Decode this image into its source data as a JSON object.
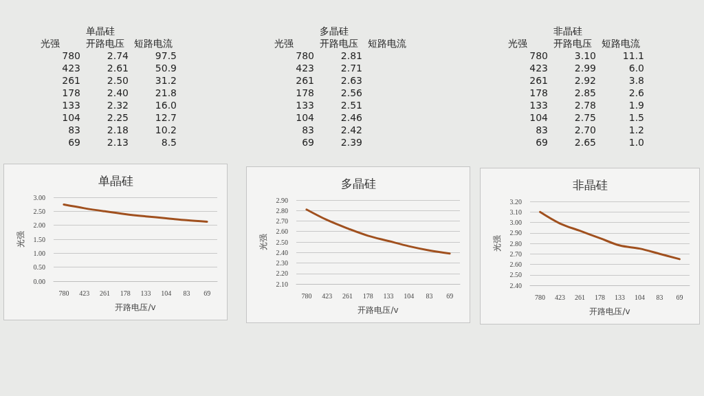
{
  "chart_data": [
    {
      "type": "other",
      "title": "单晶硅",
      "xlabel": "光强",
      "categories": [
        "780",
        "423",
        "261",
        "178",
        "133",
        "104",
        "83",
        "69"
      ],
      "series": [
        {
          "name": "开路电压",
          "values": [
            2.74,
            2.61,
            2.5,
            2.4,
            2.32,
            2.25,
            2.18,
            2.13
          ],
          "value_labels": [
            "2.74",
            "2.61",
            "2.50",
            "2.40",
            "2.32",
            "2.25",
            "2.18",
            "2.13"
          ]
        },
        {
          "name": "短路电流",
          "values": [
            97.5,
            50.9,
            31.2,
            21.8,
            16.0,
            12.7,
            10.2,
            8.5
          ],
          "value_labels": [
            "97.5",
            "50.9",
            "31.2",
            "21.8",
            "16.0",
            "12.7",
            "10.2",
            "8.5"
          ]
        }
      ]
    },
    {
      "type": "other",
      "title": "多晶硅",
      "xlabel": "光强",
      "categories": [
        "780",
        "423",
        "261",
        "178",
        "133",
        "104",
        "83",
        "69"
      ],
      "series": [
        {
          "name": "开路电压",
          "values": [
            2.81,
            2.71,
            2.63,
            2.56,
            2.51,
            2.46,
            2.42,
            2.39
          ],
          "value_labels": [
            "2.81",
            "2.71",
            "2.63",
            "2.56",
            "2.51",
            "2.46",
            "2.42",
            "2.39"
          ]
        },
        {
          "name": "短路电流",
          "values": [
            null,
            null,
            null,
            null,
            null,
            null,
            null,
            null
          ]
        }
      ]
    },
    {
      "type": "other",
      "title": "非晶硅",
      "xlabel": "光强",
      "categories": [
        "780",
        "423",
        "261",
        "178",
        "133",
        "104",
        "83",
        "69"
      ],
      "series": [
        {
          "name": "开路电压",
          "values": [
            3.1,
            2.99,
            2.92,
            2.85,
            2.78,
            2.75,
            2.7,
            2.65
          ],
          "value_labels": [
            "3.10",
            "2.99",
            "2.92",
            "2.85",
            "2.78",
            "2.75",
            "2.70",
            "2.65"
          ]
        },
        {
          "name": "短路电流",
          "values": [
            11.1,
            6.0,
            3.8,
            2.6,
            1.9,
            1.5,
            1.2,
            1.0
          ],
          "value_labels": [
            "11.1",
            "6.0",
            "3.8",
            "2.6",
            "1.9",
            "1.5",
            "1.2",
            "1.0"
          ]
        }
      ]
    },
    {
      "type": "line",
      "title": "单晶硅",
      "xlabel": "开路电压/v",
      "ylabel": "光强",
      "categories": [
        "780",
        "423",
        "261",
        "178",
        "133",
        "104",
        "83",
        "69"
      ],
      "series": [
        {
          "color": "#a0501e",
          "values": [
            2.74,
            2.61,
            2.5,
            2.4,
            2.32,
            2.25,
            2.18,
            2.13
          ]
        }
      ],
      "ylim": [
        0,
        3
      ],
      "yticks": [
        {
          "value": 0,
          "label": "0.00"
        },
        {
          "value": 0.5,
          "label": "0.50"
        },
        {
          "value": 1,
          "label": "1.00"
        },
        {
          "value": 1.5,
          "label": "1.50"
        },
        {
          "value": 2,
          "label": "2.00"
        },
        {
          "value": 2.5,
          "label": "2.50"
        },
        {
          "value": 3,
          "label": "3.00"
        }
      ],
      "grid": "y",
      "marker": "none",
      "line_style": "solid"
    },
    {
      "type": "line",
      "title": "多晶硅",
      "xlabel": "开路电压/v",
      "ylabel": "光强",
      "categories": [
        "780",
        "423",
        "261",
        "178",
        "133",
        "104",
        "83",
        "69"
      ],
      "series": [
        {
          "color": "#a0501e",
          "values": [
            2.81,
            2.71,
            2.63,
            2.56,
            2.51,
            2.46,
            2.42,
            2.39
          ]
        }
      ],
      "ylim": [
        2.1,
        2.9
      ],
      "yticks": [
        {
          "value": 2.1,
          "label": "2.10"
        },
        {
          "value": 2.2,
          "label": "2.20"
        },
        {
          "value": 2.3,
          "label": "2.30"
        },
        {
          "value": 2.4,
          "label": "2.40"
        },
        {
          "value": 2.5,
          "label": "2.50"
        },
        {
          "value": 2.6,
          "label": "2.60"
        },
        {
          "value": 2.7,
          "label": "2.70"
        },
        {
          "value": 2.8,
          "label": "2.80"
        },
        {
          "value": 2.9,
          "label": "2.90"
        }
      ],
      "grid": "y",
      "marker": "none",
      "line_style": "solid"
    },
    {
      "type": "line",
      "title": "非晶硅",
      "xlabel": "开路电压/v",
      "ylabel": "光强",
      "categories": [
        "780",
        "423",
        "261",
        "178",
        "133",
        "104",
        "83",
        "69"
      ],
      "series": [
        {
          "color": "#a0501e",
          "values": [
            3.1,
            2.99,
            2.92,
            2.85,
            2.78,
            2.75,
            2.7,
            2.65
          ]
        }
      ],
      "ylim": [
        2.4,
        3.2
      ],
      "yticks": [
        {
          "value": 2.4,
          "label": "2.40"
        },
        {
          "value": 2.5,
          "label": "2.50"
        },
        {
          "value": 2.6,
          "label": "2.60"
        },
        {
          "value": 2.7,
          "label": "2.70"
        },
        {
          "value": 2.8,
          "label": "2.80"
        },
        {
          "value": 2.9,
          "label": "2.90"
        },
        {
          "value": 3.0,
          "label": "3.00"
        },
        {
          "value": 3.1,
          "label": "3.10"
        },
        {
          "value": 3.2,
          "label": "3.20"
        }
      ],
      "grid": "y",
      "marker": "none",
      "line_style": "solid"
    }
  ]
}
